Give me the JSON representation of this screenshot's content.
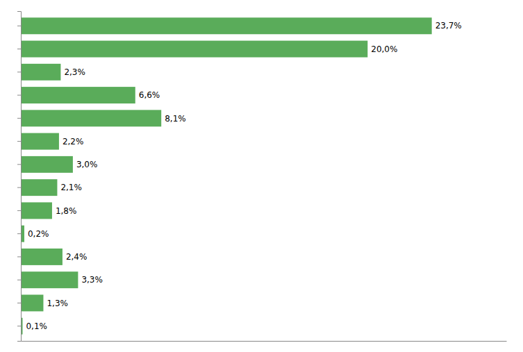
{
  "chart_data": {
    "type": "bar",
    "orientation": "horizontal",
    "categories": [
      null,
      null,
      null,
      null,
      null,
      null,
      null,
      null,
      null,
      null,
      null,
      null,
      null,
      null
    ],
    "values": [
      23.7,
      20.0,
      2.3,
      6.6,
      8.1,
      2.2,
      3.0,
      2.1,
      1.8,
      0.2,
      2.4,
      3.3,
      1.3,
      0.1
    ],
    "value_labels": [
      "23,7%",
      "20,0%",
      "2,3%",
      "6,6%",
      "8,1%",
      "2,2%",
      "3,0%",
      "2,1%",
      "1,8%",
      "0,2%",
      "2,4%",
      "3,3%",
      "1,3%",
      "0,1%"
    ],
    "data_labels": true,
    "color": "#5aac5a",
    "xlim": [
      0,
      28.0
    ],
    "tick_labels": false,
    "grid": false
  }
}
